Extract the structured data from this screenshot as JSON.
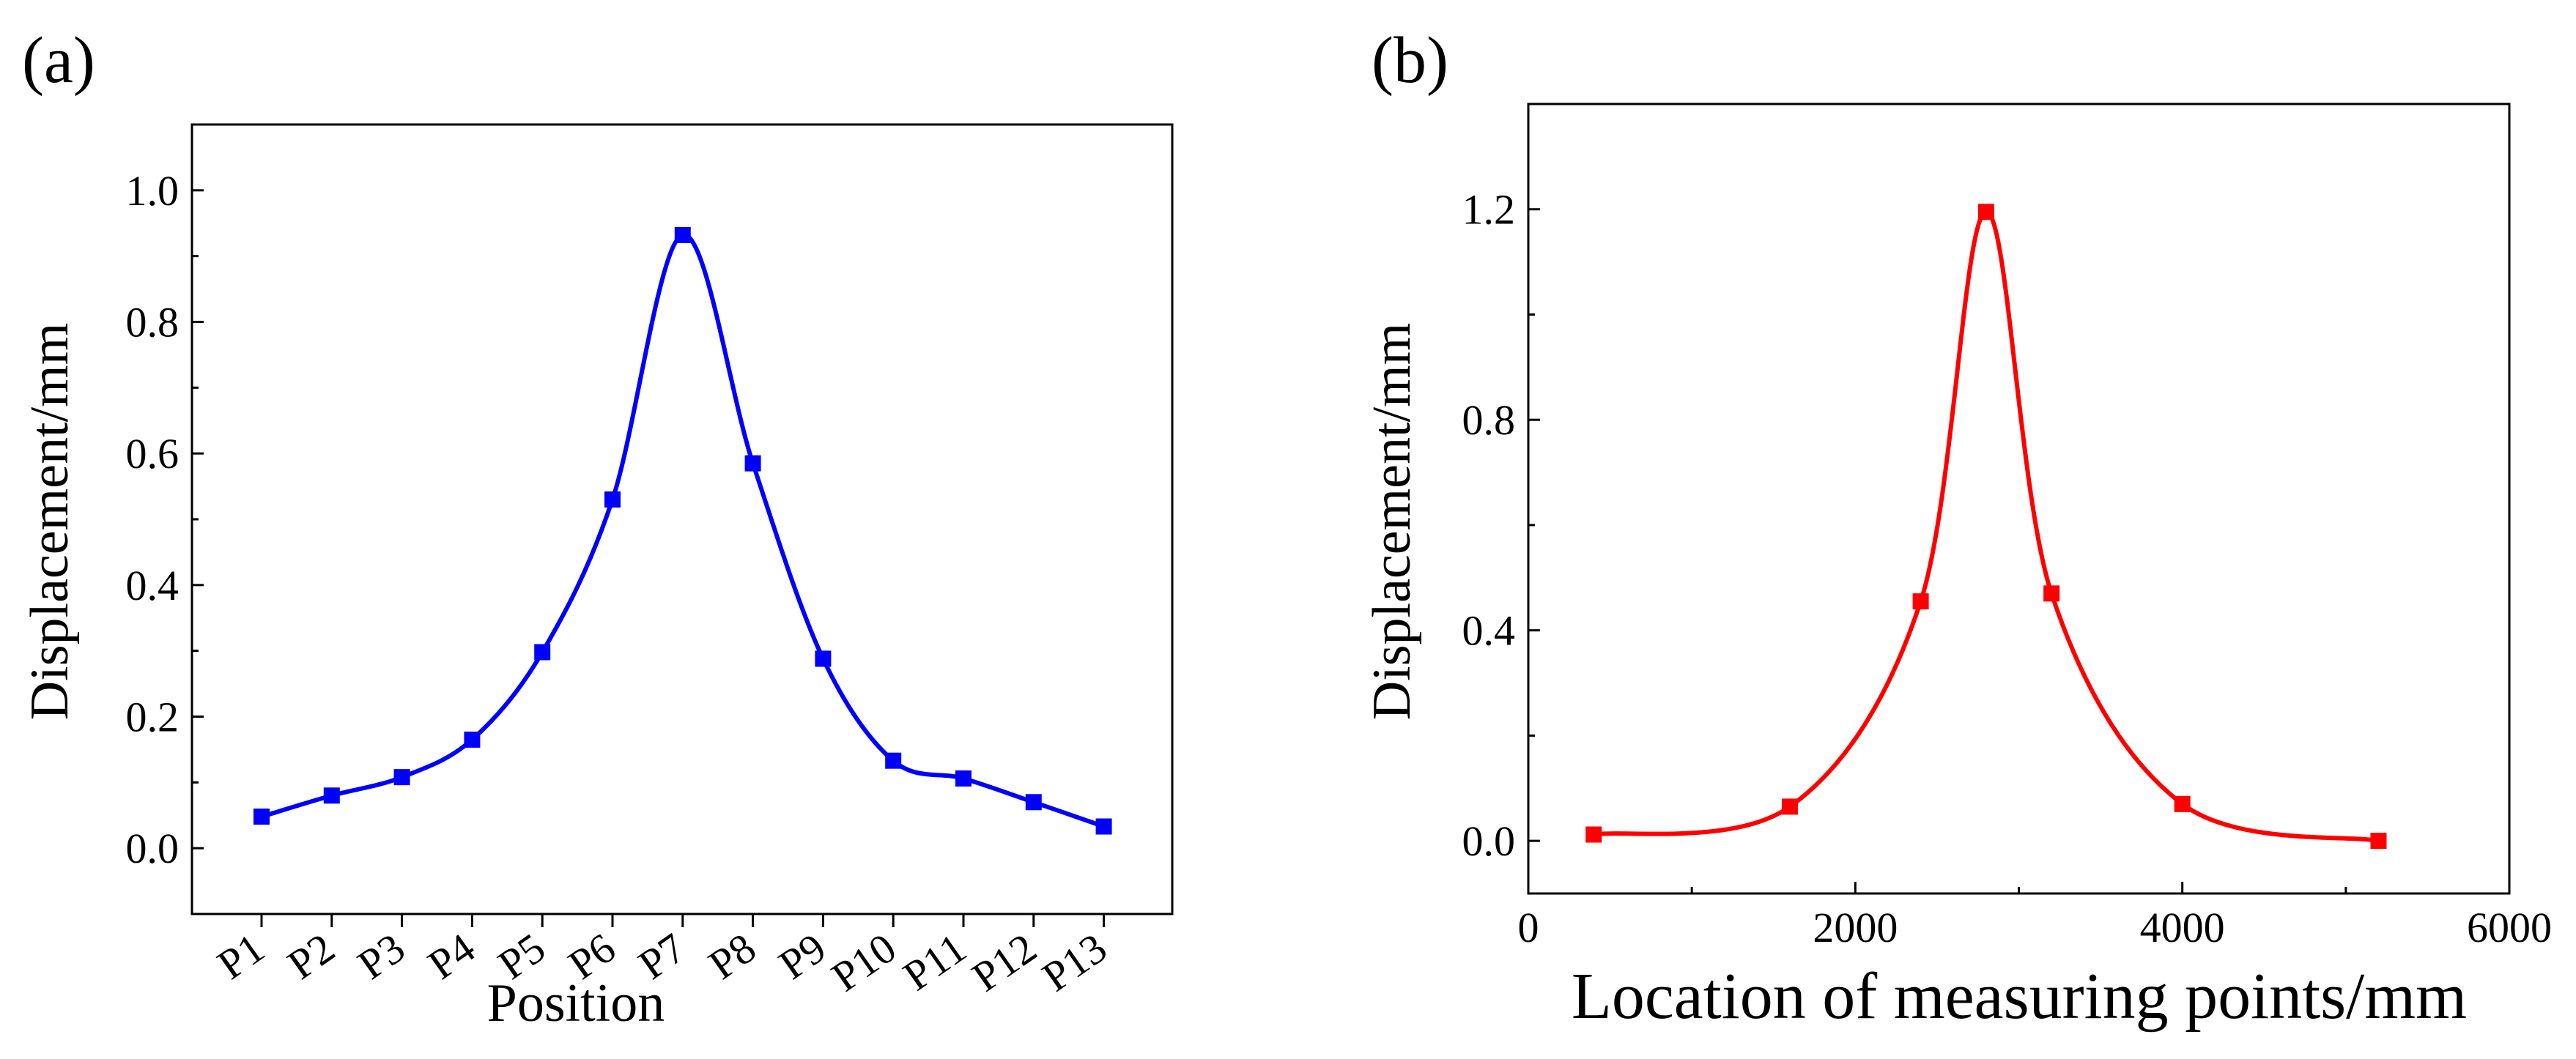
{
  "figure": {
    "panels": [
      "(a)",
      "(b)"
    ]
  },
  "chart_data": [
    {
      "id": "a",
      "type": "line",
      "panel_label": "(a)",
      "xlabel": "Position",
      "ylabel": "Displacement/mm",
      "categories": [
        "P1",
        "P2",
        "P3",
        "P4",
        "P5",
        "P6",
        "P7",
        "P8",
        "P9",
        "P10",
        "P11",
        "P12",
        "P13"
      ],
      "series": [
        {
          "name": "Displacement",
          "color": "#0000ff",
          "marker": "square",
          "values": [
            0.048,
            0.08,
            0.108,
            0.165,
            0.298,
            0.53,
            0.932,
            0.585,
            0.288,
            0.133,
            0.106,
            0.07,
            0.033
          ]
        }
      ],
      "ylim": [
        -0.1,
        1.1
      ],
      "yticks": [
        0.0,
        0.2,
        0.4,
        0.6,
        0.8,
        1.0
      ],
      "ytick_labels": [
        "0.0",
        "0.2",
        "0.4",
        "0.6",
        "0.8",
        "1.0"
      ],
      "grid": false
    },
    {
      "id": "b",
      "type": "line",
      "panel_label": "(b)",
      "xlabel": "Location of measuring points/mm",
      "ylabel": "Displacement/mm",
      "series": [
        {
          "name": "Displacement",
          "color": "#ff0000",
          "marker": "square",
          "x": [
            400,
            1600,
            2400,
            2800,
            3200,
            4000,
            5200
          ],
          "y": [
            0.012,
            0.065,
            0.455,
            1.195,
            0.47,
            0.07,
            0.0
          ]
        }
      ],
      "xlim": [
        0,
        6000
      ],
      "xticks": [
        0,
        2000,
        4000,
        6000
      ],
      "xtick_labels": [
        "0",
        "2000",
        "4000",
        "6000"
      ],
      "ylim": [
        -0.1,
        1.4
      ],
      "yticks": [
        0.0,
        0.4,
        0.8,
        1.2
      ],
      "ytick_labels": [
        "0.0",
        "0.4",
        "0.8",
        "1.2"
      ],
      "grid": false
    }
  ]
}
